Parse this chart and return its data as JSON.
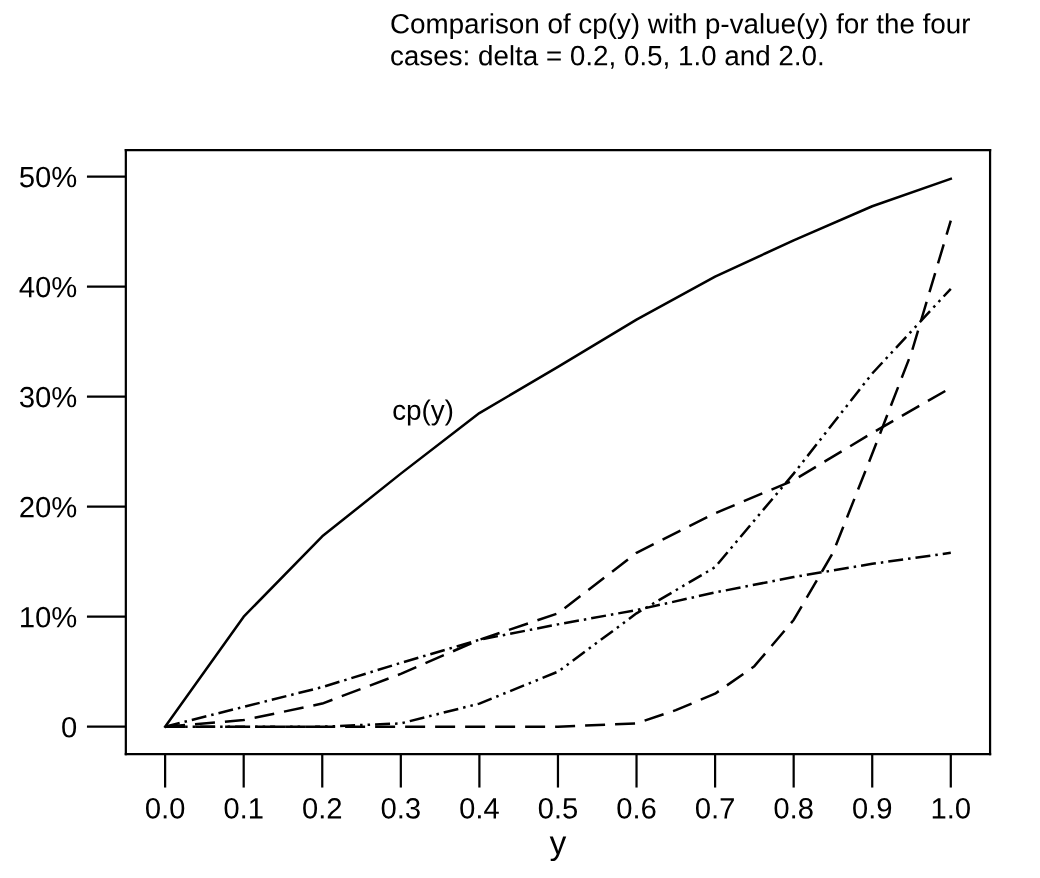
{
  "chart_data": {
    "type": "line",
    "title": "Comparison of cp(y) with p-value(y) for the four\ncases: delta = 0.2, 0.5, 1.0 and 2.0.",
    "xlabel": "y",
    "x": [
      0.0,
      0.1,
      0.2,
      0.3,
      0.4,
      0.5,
      0.6,
      0.7,
      0.8,
      0.9,
      1.0
    ],
    "series": [
      {
        "name": "cp(y)",
        "color": "#000000",
        "line_style": "solid",
        "values": [
          0,
          10,
          17.3,
          23,
          28.5,
          32.7,
          37,
          40.9,
          44.2,
          47.3,
          49.8
        ]
      },
      {
        "color": "#000000",
        "line_style": "dashdot",
        "values": [
          0,
          1.8,
          3.6,
          5.8,
          7.9,
          9.3,
          10.6,
          12.2,
          13.6,
          14.8,
          15.8
        ]
      },
      {
        "color": "#000000",
        "line_style": "dashed",
        "values": [
          0,
          0.6,
          2.1,
          4.8,
          7.9,
          10.3,
          15.8,
          19.4,
          22.4,
          26.7,
          30.8
        ]
      },
      {
        "color": "#000000",
        "line_style": "dashdotdot",
        "values": [
          0,
          0,
          0,
          0.3,
          2.1,
          5.0,
          10.3,
          14.5,
          23,
          32.1,
          39.8
        ]
      },
      {
        "color": "#000000",
        "line_style": "dashed",
        "x": [
          0.0,
          0.5,
          0.6,
          0.65,
          0.7,
          0.75,
          0.8,
          0.85,
          0.9,
          0.95,
          1.0
        ],
        "values": [
          0,
          0,
          0.3,
          1.5,
          3.0,
          5.5,
          9.7,
          15.8,
          24.8,
          34,
          46
        ]
      }
    ],
    "xlim": [
      -0.05,
      1.05
    ],
    "ylim": [
      -2.5,
      52.4
    ],
    "xticks": [
      {
        "value": 0.0,
        "label": "0.0"
      },
      0.1,
      0.2,
      0.3,
      0.4,
      0.5,
      0.6,
      0.7,
      0.8,
      0.9,
      {
        "value": 1.0,
        "label": "1.0"
      }
    ],
    "yticks": [
      0,
      {
        "value": 10,
        "label": "10%"
      },
      {
        "value": 20,
        "label": "20%"
      },
      {
        "value": 30,
        "label": "30%"
      },
      {
        "value": 40,
        "label": "40%"
      },
      {
        "value": 50,
        "label": "50%"
      }
    ],
    "grid": false,
    "legend": false,
    "marker": "none"
  }
}
